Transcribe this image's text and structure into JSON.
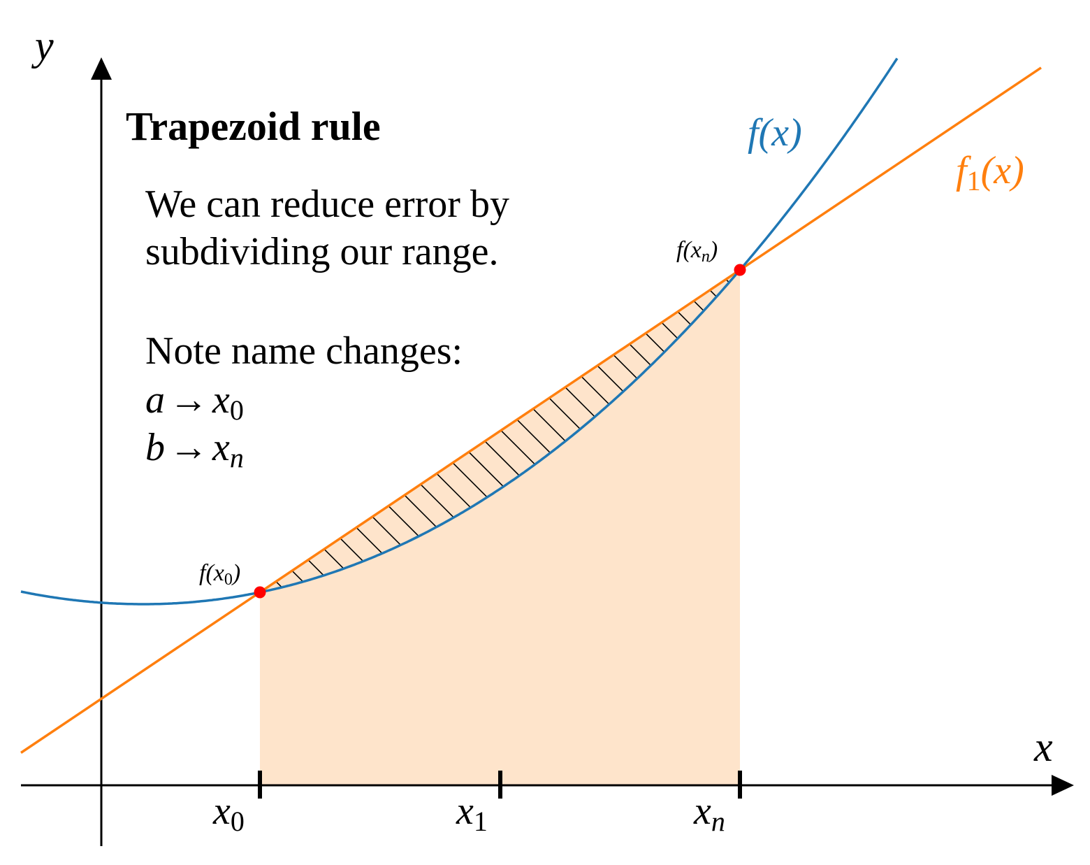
{
  "axes": {
    "x_label": "x",
    "y_label": "y"
  },
  "title": "Trapezoid rule",
  "body": [
    "We can reduce error by",
    "subdividing our range."
  ],
  "note": {
    "heading": "Note name changes:",
    "changes": [
      {
        "from": "a",
        "arrow": "→",
        "to": "x",
        "sub": "0"
      },
      {
        "from": "b",
        "arrow": "→",
        "to": "x",
        "sub": "n"
      }
    ]
  },
  "curves": {
    "f": {
      "label": "f(x)"
    },
    "f1": {
      "name": "f",
      "sub": "1",
      "args": "(x)"
    }
  },
  "points": [
    {
      "pre": "f(x",
      "sub": "0",
      "post": ")"
    },
    {
      "pre": "f(x",
      "sub": "n",
      "post": ")"
    }
  ],
  "ticks": [
    {
      "base": "x",
      "sub": "0"
    },
    {
      "base": "x",
      "sub": "1"
    },
    {
      "base": "x",
      "sub": "n"
    }
  ]
}
